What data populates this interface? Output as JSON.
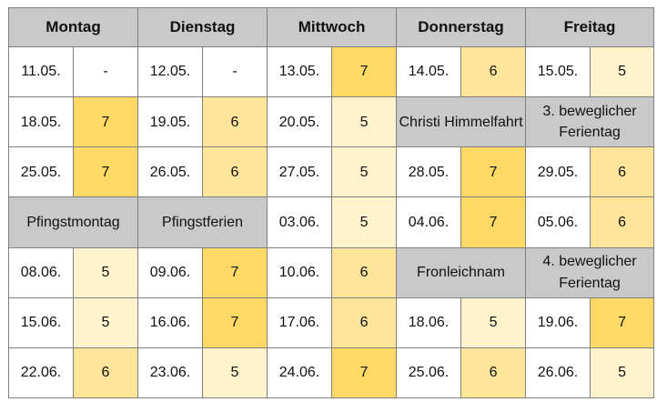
{
  "colors": {
    "header_bg": "#c9c9c9",
    "holiday_bg": "#c9c9c9",
    "value_7": "#ffd966",
    "value_6": "#fee599",
    "value_5": "#fff2cc",
    "border": "#7f7f7f"
  },
  "days": [
    "Montag",
    "Dienstag",
    "Mittwoch",
    "Donnerstag",
    "Freitag"
  ],
  "weeks": [
    [
      {
        "date": "11.05.",
        "value": "-"
      },
      {
        "date": "12.05.",
        "value": "-"
      },
      {
        "date": "13.05.",
        "value": "7"
      },
      {
        "date": "14.05.",
        "value": "6"
      },
      {
        "date": "15.05.",
        "value": "5"
      }
    ],
    [
      {
        "date": "18.05.",
        "value": "7"
      },
      {
        "date": "19.05.",
        "value": "6"
      },
      {
        "date": "20.05.",
        "value": "5"
      },
      {
        "holiday": "Christi Himmelfahrt"
      },
      {
        "holiday": "3. beweglicher Ferientag"
      }
    ],
    [
      {
        "date": "25.05.",
        "value": "7"
      },
      {
        "date": "26.05.",
        "value": "6"
      },
      {
        "date": "27.05.",
        "value": "5"
      },
      {
        "date": "28.05.",
        "value": "7"
      },
      {
        "date": "29.05.",
        "value": "6"
      }
    ],
    [
      {
        "holiday": "Pfingstmontag"
      },
      {
        "holiday": "Pfingstferien"
      },
      {
        "date": "03.06.",
        "value": "5"
      },
      {
        "date": "04.06.",
        "value": "7"
      },
      {
        "date": "05.06.",
        "value": "6"
      }
    ],
    [
      {
        "date": "08.06.",
        "value": "5"
      },
      {
        "date": "09.06.",
        "value": "7"
      },
      {
        "date": "10.06.",
        "value": "6"
      },
      {
        "holiday": "Fronleichnam"
      },
      {
        "holiday": "4. beweglicher Ferientag"
      }
    ],
    [
      {
        "date": "15.06.",
        "value": "5"
      },
      {
        "date": "16.06.",
        "value": "7"
      },
      {
        "date": "17.06.",
        "value": "6"
      },
      {
        "date": "18.06.",
        "value": "5"
      },
      {
        "date": "19.06.",
        "value": "7"
      }
    ],
    [
      {
        "date": "22.06.",
        "value": "6"
      },
      {
        "date": "23.06.",
        "value": "5"
      },
      {
        "date": "24.06.",
        "value": "7"
      },
      {
        "date": "25.06.",
        "value": "6"
      },
      {
        "date": "26.06.",
        "value": "5"
      }
    ]
  ]
}
